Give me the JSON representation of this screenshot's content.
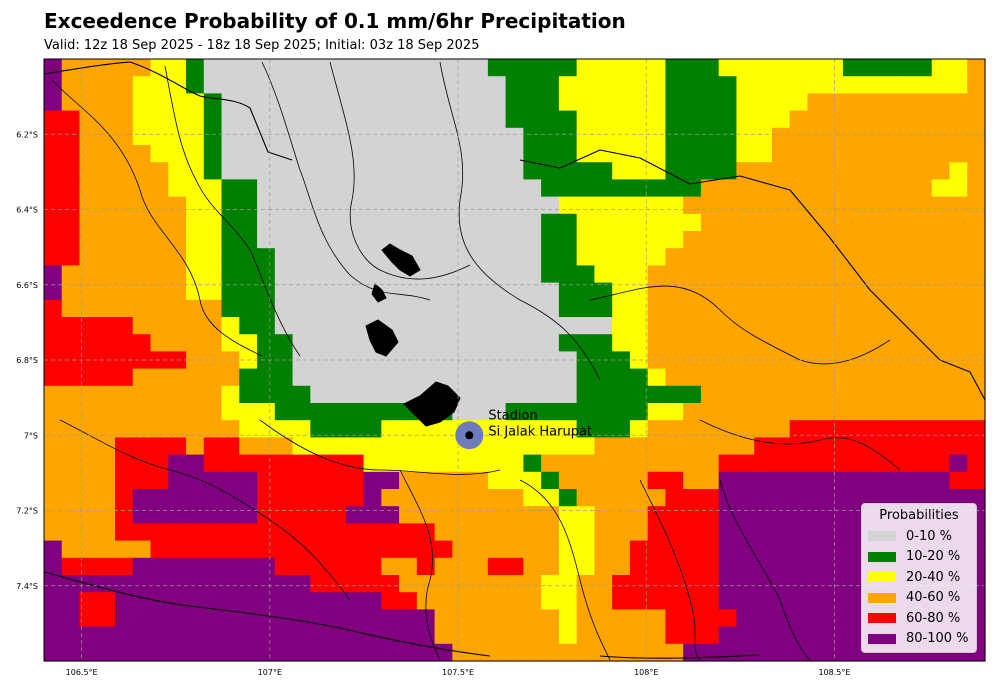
{
  "title": "Exceedence Probability of 0.1 mm/6hr Precipitation",
  "subtitle": "Valid: 12z 18 Sep 2025 - 18z 18 Sep 2025; Initial: 03z 18 Sep 2025",
  "map": {
    "lon_range": [
      106.4,
      108.9
    ],
    "lat_range": [
      -7.6,
      -6.0
    ],
    "lon_ticks": [
      {
        "value": 106.5,
        "label": "106.5°E"
      },
      {
        "value": 107.0,
        "label": "107°E"
      },
      {
        "value": 107.5,
        "label": "107.5°E"
      },
      {
        "value": 108.0,
        "label": "108°E"
      },
      {
        "value": 108.5,
        "label": "108.5°E"
      }
    ],
    "lat_ticks": [
      {
        "value": -6.2,
        "label": "6.2°S"
      },
      {
        "value": -6.4,
        "label": "6.4°S"
      },
      {
        "value": -6.6,
        "label": "6.6°S"
      },
      {
        "value": -6.8,
        "label": "6.8°S"
      },
      {
        "value": -7.0,
        "label": "7°S"
      },
      {
        "value": -7.2,
        "label": "7.2°S"
      },
      {
        "value": -7.4,
        "label": "7.4°S"
      }
    ],
    "gridlines": true,
    "station": {
      "name_line1": "Stadion",
      "name_line2": "Si Jalak Harupat",
      "lon": 107.53,
      "lat": -7.0,
      "marker_color": "#4a5ce8",
      "dot_color": "#000000"
    }
  },
  "legend": {
    "title": "Probabilities",
    "position": "bottom-right",
    "items": [
      {
        "label": "0-10 %",
        "color": "#d3d3d3"
      },
      {
        "label": "10-20 %",
        "color": "#008000"
      },
      {
        "label": "20-40 %",
        "color": "#ffff00"
      },
      {
        "label": "40-60 %",
        "color": "#ffa500"
      },
      {
        "label": "60-80 %",
        "color": "#ff0000"
      },
      {
        "label": "80-100 %",
        "color": "#800080"
      }
    ]
  },
  "grid_classes": {
    "L": "#d3d3d3",
    "G": "#008000",
    "Y": "#ffff00",
    "O": "#ffa500",
    "R": "#ff0000",
    "P": "#800080"
  },
  "probability_grid": [
    "POOOOOYYGLLLLLLLLLLLLLLLLGGGGGYYYYYGGGYYYYYYYGGGGGYYO",
    "POOOOYYYGLLLLLLLLLLLLLLLLLGGGYYYYYYGGGGYYYYYYYYYYYYYO",
    "POOOOYYYYGLLLLLLLLLLLLLLLLGGGYYYYYYGGGGYYYYOOOOOOOOOO",
    "RROOOYYYYGLLLLLLLLLLLLLLLLGGGGYYYYYGGGGYYYOOOOOOOOOOO",
    "RROOOYYYYGLLLLLLLLLLLLLLLLLGGGYYYYYGGGGYYOOOOOOOOOOOO",
    "RROOOOYYYGLLLLLLLLLLLLLLLLLGGGYYYYYGGGGYYOOOOOOOOOOOO",
    "RROOOOOYYGLLLLLLLLLLLLLLLLLGGGGGYYYGGGGOOOOOOOOOOOOYO",
    "RROOOOOYYYGGLLLLLLLLLLLLLLLLGGGGGGGGGOOOOOOOOOOOOOYYO",
    "RROOOOOOYYGGLLLLLLLLLLLLLLLLLYYYYYYYOOOOOOOOOOOOOOOOO",
    "RROOOOOOYYGGLLLLLLLLLLLLLLLLGGYYYYYYYOOOOOOOOOOOOOOOO",
    "RROOOOOOYYGGLLLLLLLLLLLLLLLLGGYYYYYYOOOOOOOOOOOOOOOOO",
    "RROOOOOOYYGGGLLLLLLLLLLLLLLLGGYYYYYOOOOOOOOOOOOOOOOOO",
    "POOOOOOOYYGGGLLLLLLLLLLLLLLLGGGYYYOOOOOOOOOOOOOOOOOOO",
    "POOOOOOOYYGGGLLLLLLLLLLLLLLLLGGGYYOOOOOOOOOOOOOOOOOOO",
    "ROOOOOOOOOGGGLLLLLLLLLLLLLLLLGGGYYOOOOOOOOOOOOOOOOOOO",
    "RRRRROOOOOYGGLLLLLLLLLLLLLLLLLLLYYOOOOOOOOOOOOOOOOOOO",
    "RRRRRROOOOYYGGLLLLLLLLLLLLLLLGGGYYOOOOOOOOOOOOOOOOOOO",
    "RRRRRRRROOOYGGLLLLLLLLLLLLLLLLGGGYOOOOOOOOOOOOOOOOOOO",
    "RRRRROOOOOOGGGLLLLLLLLLLLLLLLLGGGGYOOOOOOOOOOOOOOOOOO",
    "OOOOOOOOOOYGGGGLLLLLLLLLLLLLLLGGGGGGGOOOOOOOOOOOOOOOO",
    "OOOOOOOOOOYYYGGGGGGGGGGLLLGGGGGGGGYYOOOOOOOOOOOOOOOOO",
    "OOOOOOOOOOOYYYYGGGGYYYYYYYYYYYGGGYOOOOOOOORRRRRRRRRRR",
    "OOOORRRRORROOOYYYYYYYYYYYYYYYYYOOOOOOOOORRRRRRRRRRRRR",
    "OOOORRRPPRRRRRRRRRYYYYYYYYYGOOOOOOOOOORRRRRRRRRRRRRPR",
    "OOOORRRPPPPPRRRRRRPPOOOOOYYYGOOOOORROOPPPPPPPPPPPPPRR",
    "OOOORPPPPPPPRRRRRRPOOOOOOOOYYGOOOOORRRPPPPPPPPPPPPPPP",
    "OOOORPPPPPPPRRRRRPPPOOOOOOOOOYYOOORRRRPPPPPPPPPPPPPPP",
    "OOOORRRRRRRRRRRRRRRRRROOOOOOOYYOOORRRRPPPPPPPPPPPPPPP",
    "POOOOORRRRRRRRRRRRRRRRROOOOOOYYOORRRRRPPPPPPPPPPPPPPP",
    "PRRRRPPPPPPPPRRRRRROOROOORROOYYOORRRRRPPPPPPPPPPPPPPP",
    "PPPPPPPPPPPPPPPRRRRROOOOOOOOYYOORRRRRRPPPPPPPPPPPPPPP",
    "PPRRPPPPPPPPPPPPPPPRROOOOOOOYYOORRRRRRPPPPPPPPPPPPPPP",
    "PPRRPPPPPPPPPPPPPPPPPPOOOOOOOYOOOOORRRRPPPPPPPPPPPPPP",
    "PPPPPPPPPPPPPPPPPPPPPPOOOOOOOYOOOOORRRPPPPPPPPPPPPPPP",
    "PPPPPPPPPPPPPPPPPPPPPPPOOOOOOOOOOOOOPPPPPPPPPPPPPPPPP"
  ]
}
